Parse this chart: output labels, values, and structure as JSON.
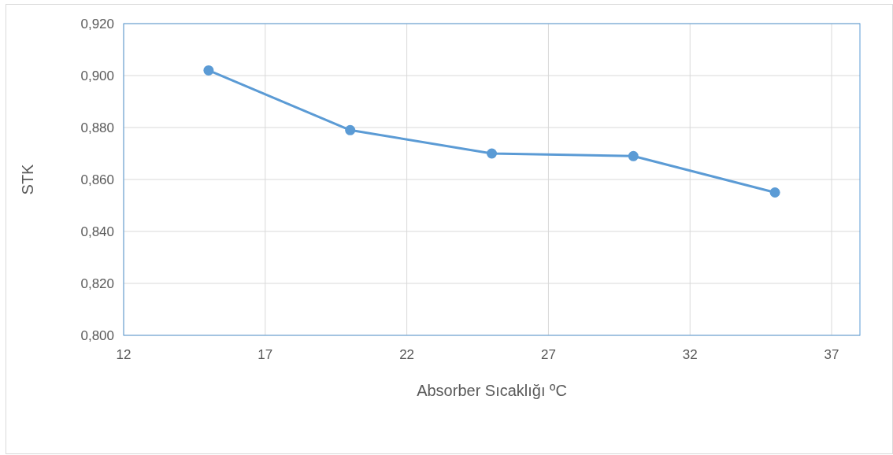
{
  "chart_data": {
    "type": "line",
    "xlabel": "Absorber Sıcaklığı ºC",
    "ylabel": "STK",
    "x": [
      15,
      20,
      25,
      30,
      35
    ],
    "series": [
      {
        "color": "#5b9bd5",
        "values": [
          0.902,
          0.879,
          0.87,
          0.869,
          0.855
        ]
      }
    ],
    "xlim": [
      12,
      38
    ],
    "xticks": [
      12,
      17,
      22,
      27,
      32,
      37
    ],
    "ylim": [
      0.8,
      0.92
    ],
    "yticks": [
      {
        "value": 0.8,
        "label": "0,800"
      },
      {
        "value": 0.82,
        "label": "0,820"
      },
      {
        "value": 0.84,
        "label": "0,840"
      },
      {
        "value": 0.86,
        "label": "0,860"
      },
      {
        "value": 0.88,
        "label": "0,880"
      },
      {
        "value": 0.9,
        "label": "0,900"
      },
      {
        "value": 0.92,
        "label": "0,920"
      }
    ],
    "grid": true,
    "marker": "circle",
    "line_style": "solid"
  }
}
